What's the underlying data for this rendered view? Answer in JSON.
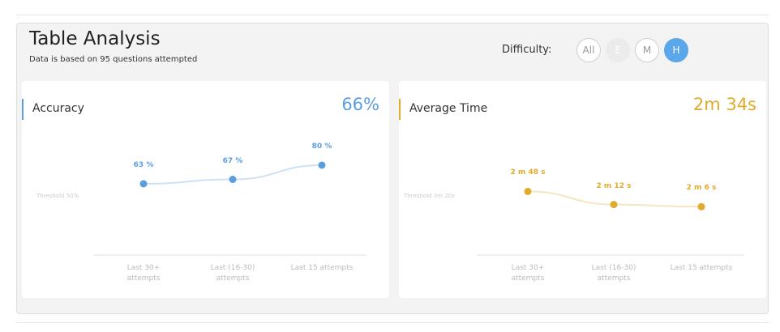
{
  "header": {
    "title": "Table Analysis",
    "subtitle": "Data is based on 95 questions attempted",
    "filter_label": "Difficulty:",
    "filters": [
      "All",
      "E",
      "M",
      "H"
    ],
    "active_filter": "H"
  },
  "charts": [
    {
      "type": "line",
      "title": "Accuracy",
      "summary": "66%",
      "threshold": "Threshold 50%",
      "categories": [
        "Last 30+ attempts",
        "Last (16-30) attempts",
        "Last 15 attempts"
      ],
      "values": [
        63,
        67,
        80
      ],
      "value_labels": [
        "63 %",
        "67 %",
        "80 %"
      ],
      "color": "#5b9ee0",
      "ylim": [
        0,
        100
      ]
    },
    {
      "type": "line",
      "title": "Average Time",
      "summary": "2m 34s",
      "threshold": "Threshold 3m 20s",
      "categories": [
        "Last 30+ attempts",
        "Last (16-30) attempts",
        "Last 15 attempts"
      ],
      "values": [
        168,
        132,
        126
      ],
      "value_labels": [
        "2 m 48 s",
        "2 m 12 s",
        "2 m 6 s"
      ],
      "color": "#e0ac2a",
      "ylim": [
        0,
        300
      ]
    }
  ]
}
